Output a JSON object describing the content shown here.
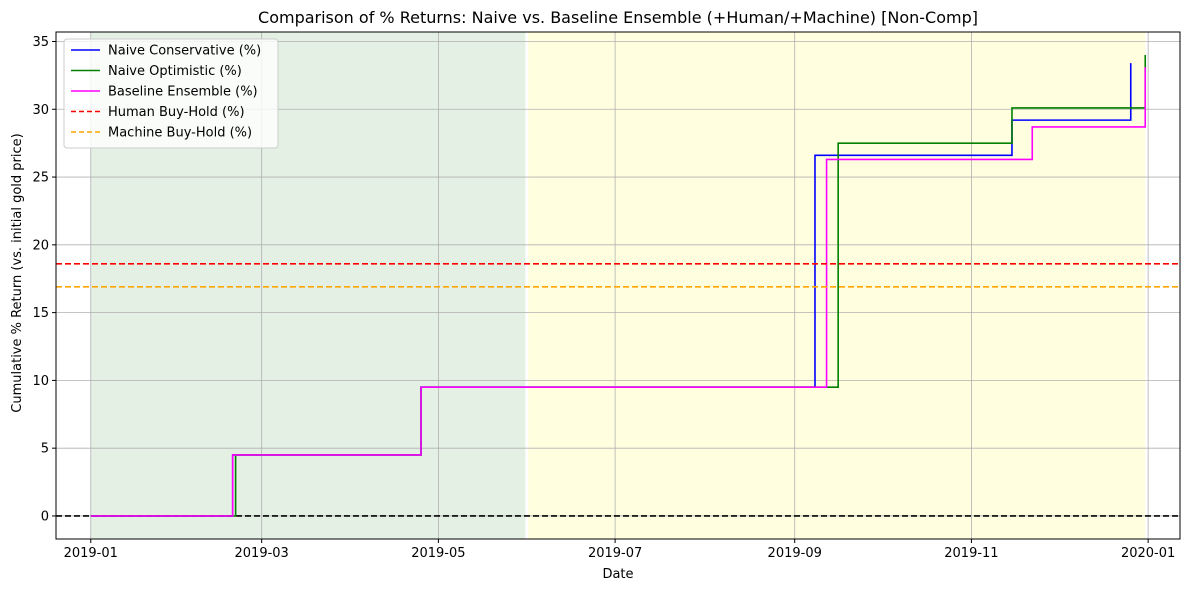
{
  "chart_data": {
    "type": "line",
    "title": "Comparison of % Returns: Naive vs. Baseline Ensemble (+Human/+Machine) [Non-Comp]",
    "xlabel": "Date",
    "ylabel": "Cumulative % Return (vs. initial gold price)",
    "xlim": [
      "2018-12-20",
      "2020-01-12"
    ],
    "ylim": [
      -1.7,
      35.7
    ],
    "x_ticks": [
      "2019-01",
      "2019-03",
      "2019-05",
      "2019-07",
      "2019-09",
      "2019-11",
      "2020-01"
    ],
    "y_ticks": [
      0,
      5,
      10,
      15,
      20,
      25,
      30,
      35
    ],
    "grid": true,
    "legend_position": "top-left",
    "shaded_regions": [
      {
        "start": "2019-01-01",
        "end": "2019-05-31",
        "color": "#e4f0e4"
      },
      {
        "start": "2019-06-01",
        "end": "2019-12-31",
        "color": "#ffffe0"
      }
    ],
    "series": [
      {
        "name": "Naive Conservative (%)",
        "color": "#0000ff",
        "style": "step",
        "x": [
          "2019-01-01",
          "2019-02-19",
          "2019-04-25",
          "2019-09-08",
          "2019-11-15",
          "2019-12-26"
        ],
        "values": [
          0,
          4.5,
          9.5,
          26.6,
          29.2,
          33.4
        ]
      },
      {
        "name": "Naive Optimistic (%)",
        "color": "#008000",
        "style": "step",
        "x": [
          "2019-01-01",
          "2019-02-20",
          "2019-04-25",
          "2019-09-16",
          "2019-11-15",
          "2019-12-31"
        ],
        "values": [
          0,
          4.5,
          9.5,
          27.5,
          30.1,
          34.0
        ]
      },
      {
        "name": "Baseline Ensemble (%)",
        "color": "#ff00ff",
        "style": "step",
        "x": [
          "2019-01-01",
          "2019-02-19",
          "2019-04-25",
          "2019-09-12",
          "2019-11-22",
          "2019-12-31"
        ],
        "values": [
          0,
          4.5,
          9.5,
          26.3,
          28.7,
          33.1
        ]
      },
      {
        "name": "Human Buy-Hold (%)",
        "color": "#ff0000",
        "style": "hline-dashed",
        "value": 18.6
      },
      {
        "name": "Machine Buy-Hold (%)",
        "color": "#ffa500",
        "style": "hline-dashed",
        "value": 16.9
      }
    ],
    "reference_line": {
      "value": 0,
      "color": "#000000",
      "style": "dashed"
    }
  }
}
